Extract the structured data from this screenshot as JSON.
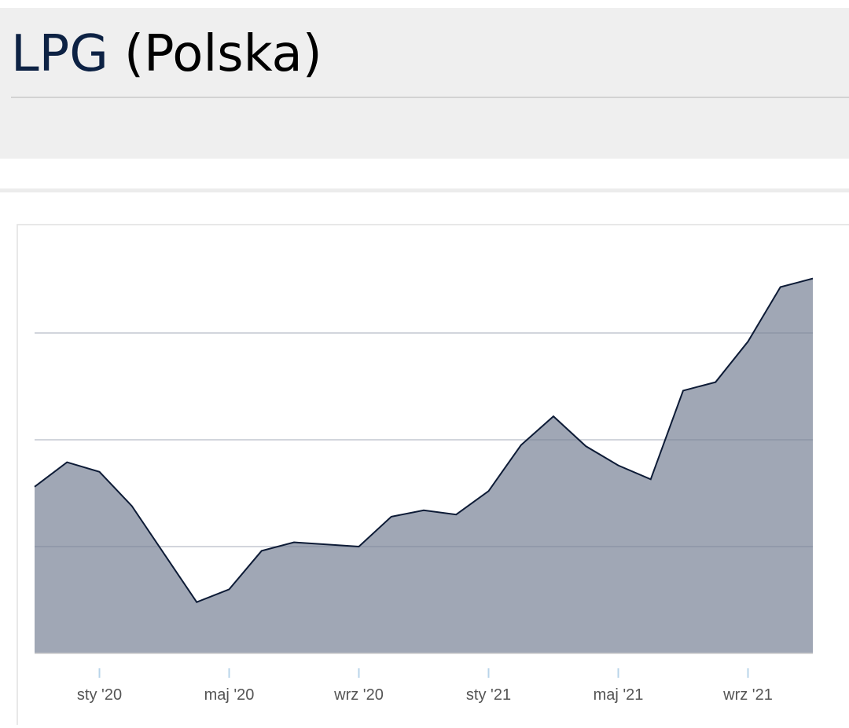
{
  "chart_data": {
    "type": "area",
    "title": "LPG",
    "subtitle": "(Polska)",
    "categories": [
      null,
      null,
      "sty '20",
      null,
      null,
      null,
      "maj '20",
      null,
      null,
      null,
      "wrz '20",
      null,
      null,
      null,
      "sty '21",
      null,
      null,
      null,
      "maj '21",
      null,
      null,
      null,
      "wrz '21",
      null,
      null
    ],
    "values": [
      1.56,
      1.79,
      1.7,
      1.38,
      0.93,
      0.48,
      0.6,
      0.96,
      1.04,
      1.02,
      1.0,
      1.28,
      1.34,
      1.3,
      1.52,
      1.95,
      2.22,
      1.94,
      1.76,
      1.63,
      2.46,
      2.54,
      2.92,
      3.43,
      3.51
    ],
    "color": "#a0a7b5",
    "line_color": "#0d1b36",
    "ylim": [
      0,
      4
    ],
    "yticks": [
      0,
      1,
      2,
      3
    ],
    "grid": true
  }
}
